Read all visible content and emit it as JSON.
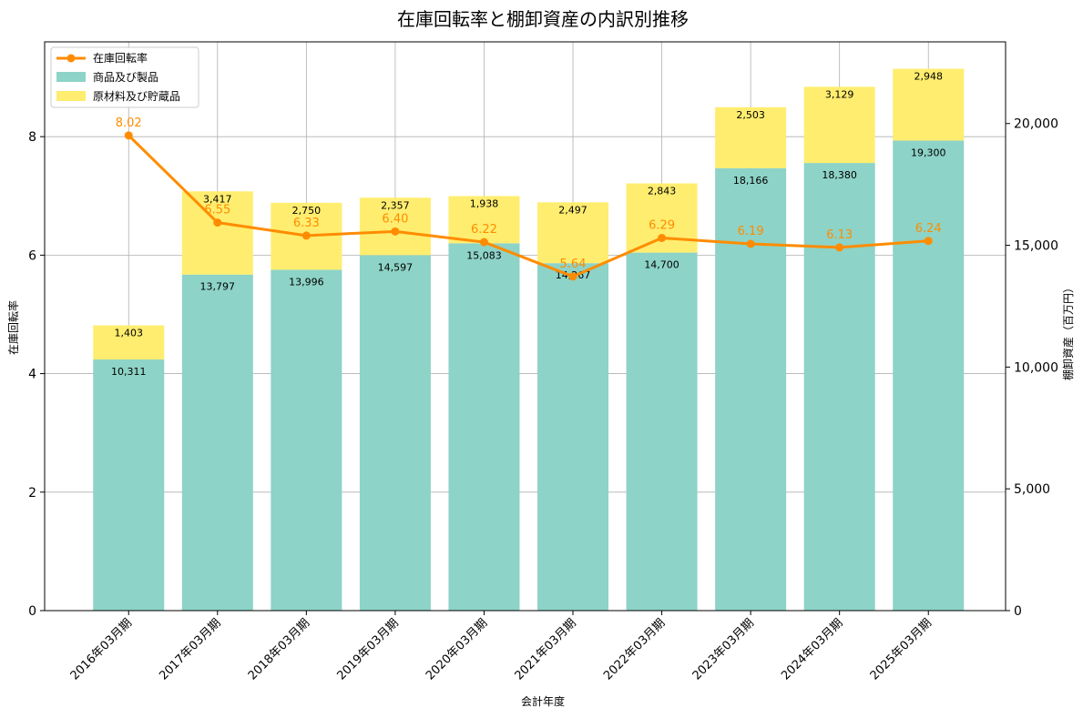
{
  "chart_data": {
    "type": "bar+line",
    "title": "在庫回転率と棚卸資産の内訳別推移",
    "xlabel": "会計年度",
    "ylabel_left": "在庫回転率",
    "ylabel_right": "棚卸資産（百万円）",
    "categories": [
      "2016年03月期",
      "2017年03月期",
      "2018年03月期",
      "2019年03月期",
      "2020年03月期",
      "2021年03月期",
      "2022年03月期",
      "2023年03月期",
      "2024年03月期",
      "2025年03月期"
    ],
    "bar_series": [
      {
        "name": "商品及び製品",
        "color": "#8dd3c7",
        "values": [
          10311,
          13797,
          13996,
          14597,
          15083,
          14267,
          14700,
          18166,
          18380,
          19300
        ],
        "labels": [
          "10,311",
          "13,797",
          "13,996",
          "14,597",
          "15,083",
          "14,267",
          "14,700",
          "18,166",
          "18,380",
          "19,300"
        ]
      },
      {
        "name": "原材料及び貯蔵品",
        "color": "#ffed6f",
        "values": [
          1403,
          3417,
          2750,
          2357,
          1938,
          2497,
          2843,
          2503,
          3129,
          2948
        ],
        "labels": [
          "1,403",
          "3,417",
          "2,750",
          "2,357",
          "1,938",
          "2,497",
          "2,843",
          "2,503",
          "3,129",
          "2,948"
        ]
      }
    ],
    "line_series": {
      "name": "在庫回転率",
      "color": "#ff8c00",
      "values": [
        8.02,
        6.55,
        6.33,
        6.4,
        6.22,
        5.64,
        6.29,
        6.19,
        6.13,
        6.24
      ],
      "labels": [
        "8.02",
        "6.55",
        "6.33",
        "6.40",
        "6.22",
        "5.64",
        "6.29",
        "6.19",
        "6.13",
        "6.24"
      ]
    },
    "ylim_left": [
      0,
      9.6
    ],
    "yticks_left": [
      0,
      2,
      4,
      6,
      8
    ],
    "ylim_right": [
      0,
      23353
    ],
    "yticks_right": [
      0,
      5000,
      10000,
      15000,
      20000
    ],
    "yticks_right_labels": [
      "0",
      "5,000",
      "10,000",
      "15,000",
      "20,000"
    ],
    "legend_position": "top-left",
    "grid": true
  }
}
